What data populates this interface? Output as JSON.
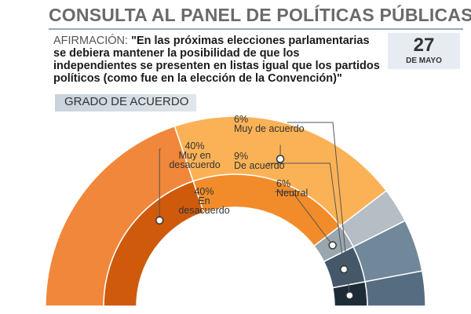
{
  "header": {
    "title": "CONSULTA AL PANEL DE POLÍTICAS PÚBLICAS",
    "statement_label": "AFIRMACIÓN:",
    "statement_text": "\"En las próximas elecciones parlamentarias se debiera mantener la posibilidad de que los independientes se presenten en listas igual que los partidos políticos (como fue en la elección de la Convención)\"",
    "date_day": "27",
    "date_month": "DE MAYO"
  },
  "section_label": "GRADO DE ACUERDO",
  "chart_data": {
    "type": "pie",
    "style": "semicircle-donut",
    "title": "GRADO DE ACUERDO",
    "categories": [
      "Muy en desacuerdo",
      "En desacuerdo",
      "Neutral",
      "De acuerdo",
      "Muy de acuerdo"
    ],
    "values": [
      40,
      40,
      6,
      9,
      6
    ],
    "labels": [
      {
        "pct": "40%",
        "lines": [
          "Muy en",
          "desacuerdo"
        ]
      },
      {
        "pct": "40%",
        "lines": [
          "En",
          "desacuerdo"
        ]
      },
      {
        "pct": "6%",
        "lines": [
          "Neutral"
        ]
      },
      {
        "pct": "9%",
        "lines": [
          "De acuerdo"
        ]
      },
      {
        "pct": "6%",
        "lines": [
          "Muy de acuerdo"
        ]
      }
    ],
    "colors": {
      "inner": [
        "#cf5a0c",
        "#f28c2a",
        "#9aa6ae",
        "#44586a",
        "#1e2c38"
      ],
      "outer": [
        "#f1873a",
        "#fbb256",
        "#b4bec4",
        "#71879a",
        "#566c80"
      ]
    }
  }
}
